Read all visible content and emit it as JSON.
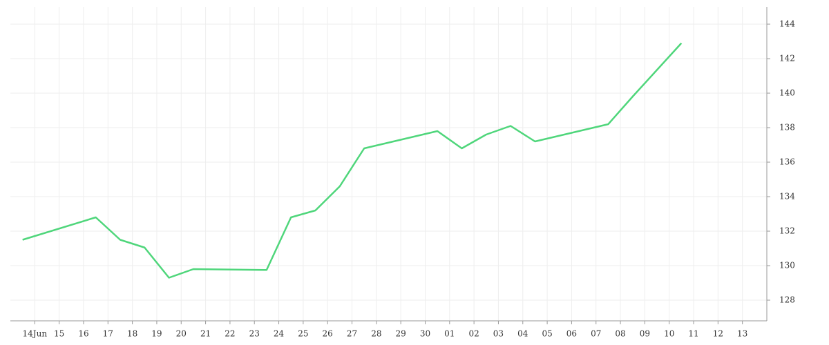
{
  "chart_data": {
    "type": "line",
    "x": [
      -0.5,
      2.5,
      3.5,
      4.5,
      5.5,
      6.5,
      9.5,
      10.5,
      11.5,
      12.5,
      13.5,
      16.5,
      17.5,
      18.5,
      19.5,
      20.5,
      23.5,
      24.5,
      26.5
    ],
    "series": [
      {
        "color": "#4fd67b",
        "values": [
          131.5,
          132.8,
          131.5,
          131.05,
          129.3,
          129.8,
          129.75,
          132.8,
          133.2,
          134.6,
          136.8,
          137.8,
          136.8,
          137.6,
          138.1,
          137.2,
          138.2,
          139.8,
          142.9
        ]
      }
    ],
    "xlim": [
      -1,
      30
    ],
    "xticks": [
      {
        "value": 0,
        "label": "14Jun"
      },
      {
        "value": 1,
        "label": "15"
      },
      {
        "value": 2,
        "label": "16"
      },
      {
        "value": 3,
        "label": "17"
      },
      {
        "value": 4,
        "label": "18"
      },
      {
        "value": 5,
        "label": "19"
      },
      {
        "value": 6,
        "label": "20"
      },
      {
        "value": 7,
        "label": "21"
      },
      {
        "value": 8,
        "label": "22"
      },
      {
        "value": 9,
        "label": "23"
      },
      {
        "value": 10,
        "label": "24"
      },
      {
        "value": 11,
        "label": "25"
      },
      {
        "value": 12,
        "label": "26"
      },
      {
        "value": 13,
        "label": "27"
      },
      {
        "value": 14,
        "label": "28"
      },
      {
        "value": 15,
        "label": "29"
      },
      {
        "value": 16,
        "label": "30"
      },
      {
        "value": 17,
        "label": "01"
      },
      {
        "value": 18,
        "label": "02"
      },
      {
        "value": 19,
        "label": "03"
      },
      {
        "value": 20,
        "label": "04"
      },
      {
        "value": 21,
        "label": "05"
      },
      {
        "value": 22,
        "label": "06"
      },
      {
        "value": 23,
        "label": "07"
      },
      {
        "value": 24,
        "label": "08"
      },
      {
        "value": 25,
        "label": "09"
      },
      {
        "value": 26,
        "label": "10"
      },
      {
        "value": 27,
        "label": "11"
      },
      {
        "value": 28,
        "label": "12"
      },
      {
        "value": 29,
        "label": "13"
      }
    ],
    "ylim": [
      126.8,
      145
    ],
    "yticks": [
      128,
      130,
      132,
      134,
      136,
      138,
      140,
      142,
      144
    ],
    "grid": true
  }
}
